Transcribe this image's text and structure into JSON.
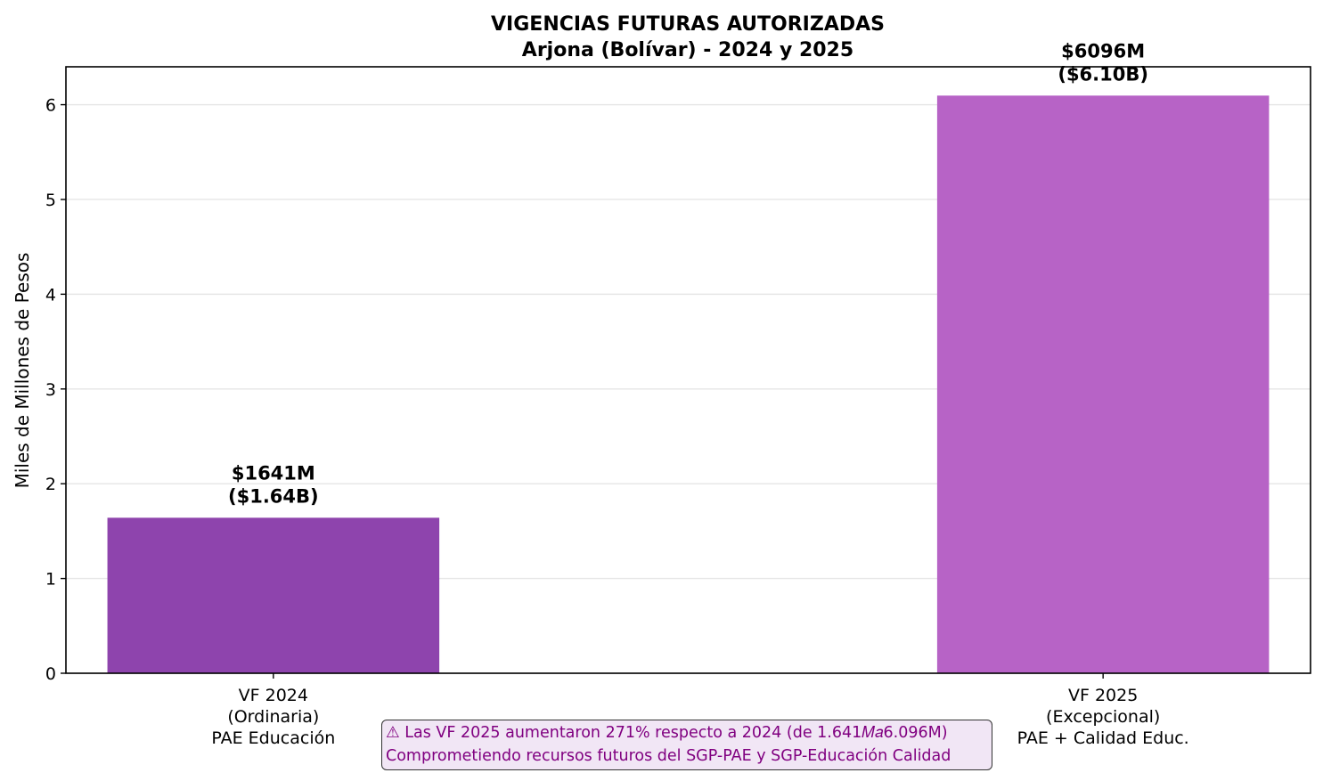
{
  "colors": {
    "bar_2024": "#8e44ad",
    "bar_2025": "#b763c6",
    "note_text": "#800080",
    "note_bg": "#f1e6f5",
    "grid": "#e6e6e6"
  },
  "chart_data": {
    "type": "bar",
    "title": "VIGENCIAS FUTURAS AUTORIZADAS",
    "subtitle": "Arjona (Bolívar) - 2024 y 2025",
    "ylabel": "Miles de Millones de Pesos",
    "xlabel": "",
    "ylim": [
      0,
      6.4
    ],
    "yticks": [
      "0",
      "1",
      "2",
      "3",
      "4",
      "5",
      "6"
    ],
    "grid": "horizontal",
    "categories": [
      [
        "VF 2024",
        "(Ordinaria)",
        "PAE Educación"
      ],
      [
        "VF 2025",
        "(Excepcional)",
        "PAE + Calidad Educ."
      ]
    ],
    "values": [
      1.641,
      6.096
    ],
    "data_labels": [
      [
        "$1641M",
        "($1.64B)"
      ],
      [
        "$6096M",
        "($6.10B)"
      ]
    ]
  },
  "annotation": {
    "line1": "⚠ Las VF 2025 aumentaron 271% respecto a 2024 (de 1.641𝑀𝑎6.096M)",
    "line2": "Comprometiendo recursos futuros del SGP-PAE y SGP-Educación Calidad"
  }
}
